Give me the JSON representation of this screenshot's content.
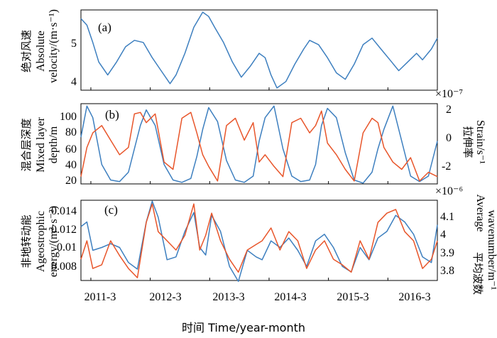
{
  "colors": {
    "blue": "#3d7fbf",
    "orange": "#e8552a",
    "axis": "#000000"
  },
  "panels": {
    "a": {
      "tag": "(a)",
      "ylabel_cn": "绝对风速",
      "ylabel_en1": "Absolute",
      "ylabel_en2": "velocity/(m·s⁻¹)",
      "yticks": [
        "5",
        "4"
      ]
    },
    "b": {
      "tag": "(b)",
      "ylabel_cn": "混合层深度",
      "ylabel_en1": "Mixed layer",
      "ylabel_en2": "depth/m",
      "yticks": [
        "100",
        "80",
        "60",
        "40",
        "20"
      ],
      "right_exponent": "×10⁻⁷",
      "right_label_cn": "拉伸率",
      "right_label_en": "Strain/s⁻¹",
      "right_yticks": [
        "2",
        "0",
        "-2"
      ]
    },
    "c": {
      "tag": "(c)",
      "ylabel_cn": "非地转动能",
      "ylabel_en1": "Ageostrophic",
      "ylabel_en2": "energy/(m²·s⁻²)",
      "yticks": [
        "0.014",
        "0.012",
        "0.01",
        "0.008"
      ],
      "right_exponent": "×10⁻⁶",
      "right_label_cn": "平均波数",
      "right_label_en1": "Average",
      "right_label_en2": "wavenumber/m⁻¹",
      "right_yticks": [
        "4.1",
        "4",
        "3.9",
        "3.8"
      ]
    }
  },
  "xaxis": {
    "ticks": [
      "2011-3",
      "2012-3",
      "2013-3",
      "2014-3",
      "2015-3",
      "2016-3"
    ],
    "label": "时间 Time/year-month"
  },
  "chart_data": [
    {
      "type": "line",
      "panel": "a",
      "ylim": [
        3.85,
        5.7
      ],
      "x": [
        2011.0,
        2011.1,
        2011.2,
        2011.3,
        2011.45,
        2011.6,
        2011.75,
        2011.9,
        2012.05,
        2012.2,
        2012.35,
        2012.5,
        2012.6,
        2012.75,
        2012.9,
        2013.05,
        2013.15,
        2013.25,
        2013.4,
        2013.55,
        2013.7,
        2013.85,
        2014.0,
        2014.1,
        2014.2,
        2014.3,
        2014.45,
        2014.6,
        2014.75,
        2014.85,
        2015.0,
        2015.15,
        2015.3,
        2015.45,
        2015.6,
        2015.75,
        2015.9,
        2016.05,
        2016.2,
        2016.35,
        2016.5,
        2016.65,
        2016.75,
        2016.9,
        2017.0
      ],
      "series": [
        {
          "values": [
            5.5,
            5.35,
            4.95,
            4.5,
            4.2,
            4.5,
            4.85,
            5.0,
            4.95,
            4.6,
            4.3,
            4.0,
            4.2,
            4.7,
            5.3,
            5.65,
            5.55,
            5.3,
            4.95,
            4.5,
            4.15,
            4.4,
            4.7,
            4.6,
            4.2,
            3.9,
            4.05,
            4.45,
            4.8,
            5.0,
            4.9,
            4.6,
            4.25,
            4.1,
            4.45,
            4.9,
            5.05,
            4.8,
            4.55,
            4.3,
            4.5,
            4.7,
            4.55,
            4.8,
            5.05
          ]
        }
      ]
    },
    {
      "type": "line",
      "panel": "b",
      "x": [
        2011.0,
        2011.1,
        2011.2,
        2011.35,
        2011.5,
        2011.65,
        2011.8,
        2011.9,
        2012.0,
        2012.1,
        2012.25,
        2012.4,
        2012.55,
        2012.7,
        2012.85,
        2012.95,
        2013.05,
        2013.15,
        2013.3,
        2013.45,
        2013.6,
        2013.75,
        2013.9,
        2014.0,
        2014.1,
        2014.25,
        2014.4,
        2014.55,
        2014.7,
        2014.85,
        2014.95,
        2015.05,
        2015.15,
        2015.3,
        2015.45,
        2015.6,
        2015.75,
        2015.9,
        2016.0,
        2016.1,
        2016.25,
        2016.4,
        2016.55,
        2016.7,
        2016.85,
        2017.0
      ],
      "series": [
        {
          "name": "Mixed layer depth",
          "ylim": [
            15,
            118
          ],
          "values": [
            75,
            115,
            100,
            40,
            20,
            18,
            30,
            60,
            90,
            110,
            90,
            40,
            20,
            17,
            22,
            50,
            85,
            113,
            95,
            45,
            20,
            17,
            25,
            70,
            100,
            115,
            60,
            25,
            18,
            20,
            40,
            90,
            112,
            100,
            55,
            20,
            16,
            30,
            60,
            85,
            115,
            70,
            25,
            18,
            25,
            70
          ]
        },
        {
          "name": "Strain",
          "ylim": [
            -3.0,
            2.5
          ],
          "values": [
            -2.5,
            -0.5,
            0.5,
            1.0,
            0.0,
            -1.0,
            -0.5,
            1.8,
            1.9,
            1.2,
            1.8,
            -1.5,
            -2.0,
            1.5,
            1.9,
            0.5,
            -1.0,
            -1.8,
            -2.8,
            1.0,
            1.5,
            0.0,
            1.2,
            -1.5,
            -1.0,
            -1.8,
            -2.5,
            1.2,
            1.5,
            0.5,
            1.0,
            2.0,
            -0.2,
            -1.0,
            -2.0,
            -2.8,
            0.5,
            1.5,
            1.2,
            -0.5,
            -1.5,
            -2.0,
            -1.2,
            -2.8,
            -2.2,
            -2.5
          ]
        }
      ]
    },
    {
      "type": "line",
      "panel": "c",
      "x": [
        2011.0,
        2011.1,
        2011.2,
        2011.35,
        2011.5,
        2011.65,
        2011.8,
        2011.95,
        2012.1,
        2012.2,
        2012.3,
        2012.45,
        2012.6,
        2012.75,
        2012.9,
        2013.0,
        2013.1,
        2013.2,
        2013.35,
        2013.5,
        2013.65,
        2013.8,
        2013.95,
        2014.05,
        2014.2,
        2014.35,
        2014.5,
        2014.65,
        2014.8,
        2014.95,
        2015.1,
        2015.25,
        2015.4,
        2015.55,
        2015.7,
        2015.85,
        2016.0,
        2016.15,
        2016.3,
        2016.45,
        2016.6,
        2016.75,
        2016.9,
        2017.0
      ],
      "series": [
        {
          "name": "Ageostrophic energy",
          "ylim": [
            0.0063,
            0.0148
          ],
          "values": [
            0.012,
            0.0125,
            0.0095,
            0.0098,
            0.0102,
            0.0098,
            0.0082,
            0.0075,
            0.0125,
            0.0147,
            0.013,
            0.0085,
            0.0088,
            0.0115,
            0.0135,
            0.0098,
            0.009,
            0.0132,
            0.0115,
            0.0078,
            0.0062,
            0.0095,
            0.0088,
            0.0085,
            0.0105,
            0.0098,
            0.0108,
            0.0095,
            0.0078,
            0.0105,
            0.0112,
            0.0098,
            0.0078,
            0.0072,
            0.0098,
            0.0085,
            0.0108,
            0.0115,
            0.0132,
            0.0125,
            0.0112,
            0.0088,
            0.0082,
            0.0122
          ]
        },
        {
          "name": "Average wavenumber",
          "ylim": [
            3.735,
            4.17
          ],
          "values": [
            3.85,
            3.95,
            3.8,
            3.82,
            3.95,
            3.87,
            3.8,
            3.75,
            4.05,
            4.15,
            4.0,
            3.95,
            3.9,
            3.98,
            4.15,
            3.9,
            3.98,
            4.1,
            3.95,
            3.85,
            3.78,
            3.9,
            3.93,
            3.95,
            4.02,
            3.9,
            4.0,
            3.95,
            3.8,
            3.9,
            3.95,
            3.85,
            3.82,
            3.78,
            3.95,
            3.85,
            4.05,
            4.1,
            4.12,
            4.0,
            3.95,
            3.8,
            3.85,
            3.95
          ]
        }
      ]
    }
  ]
}
